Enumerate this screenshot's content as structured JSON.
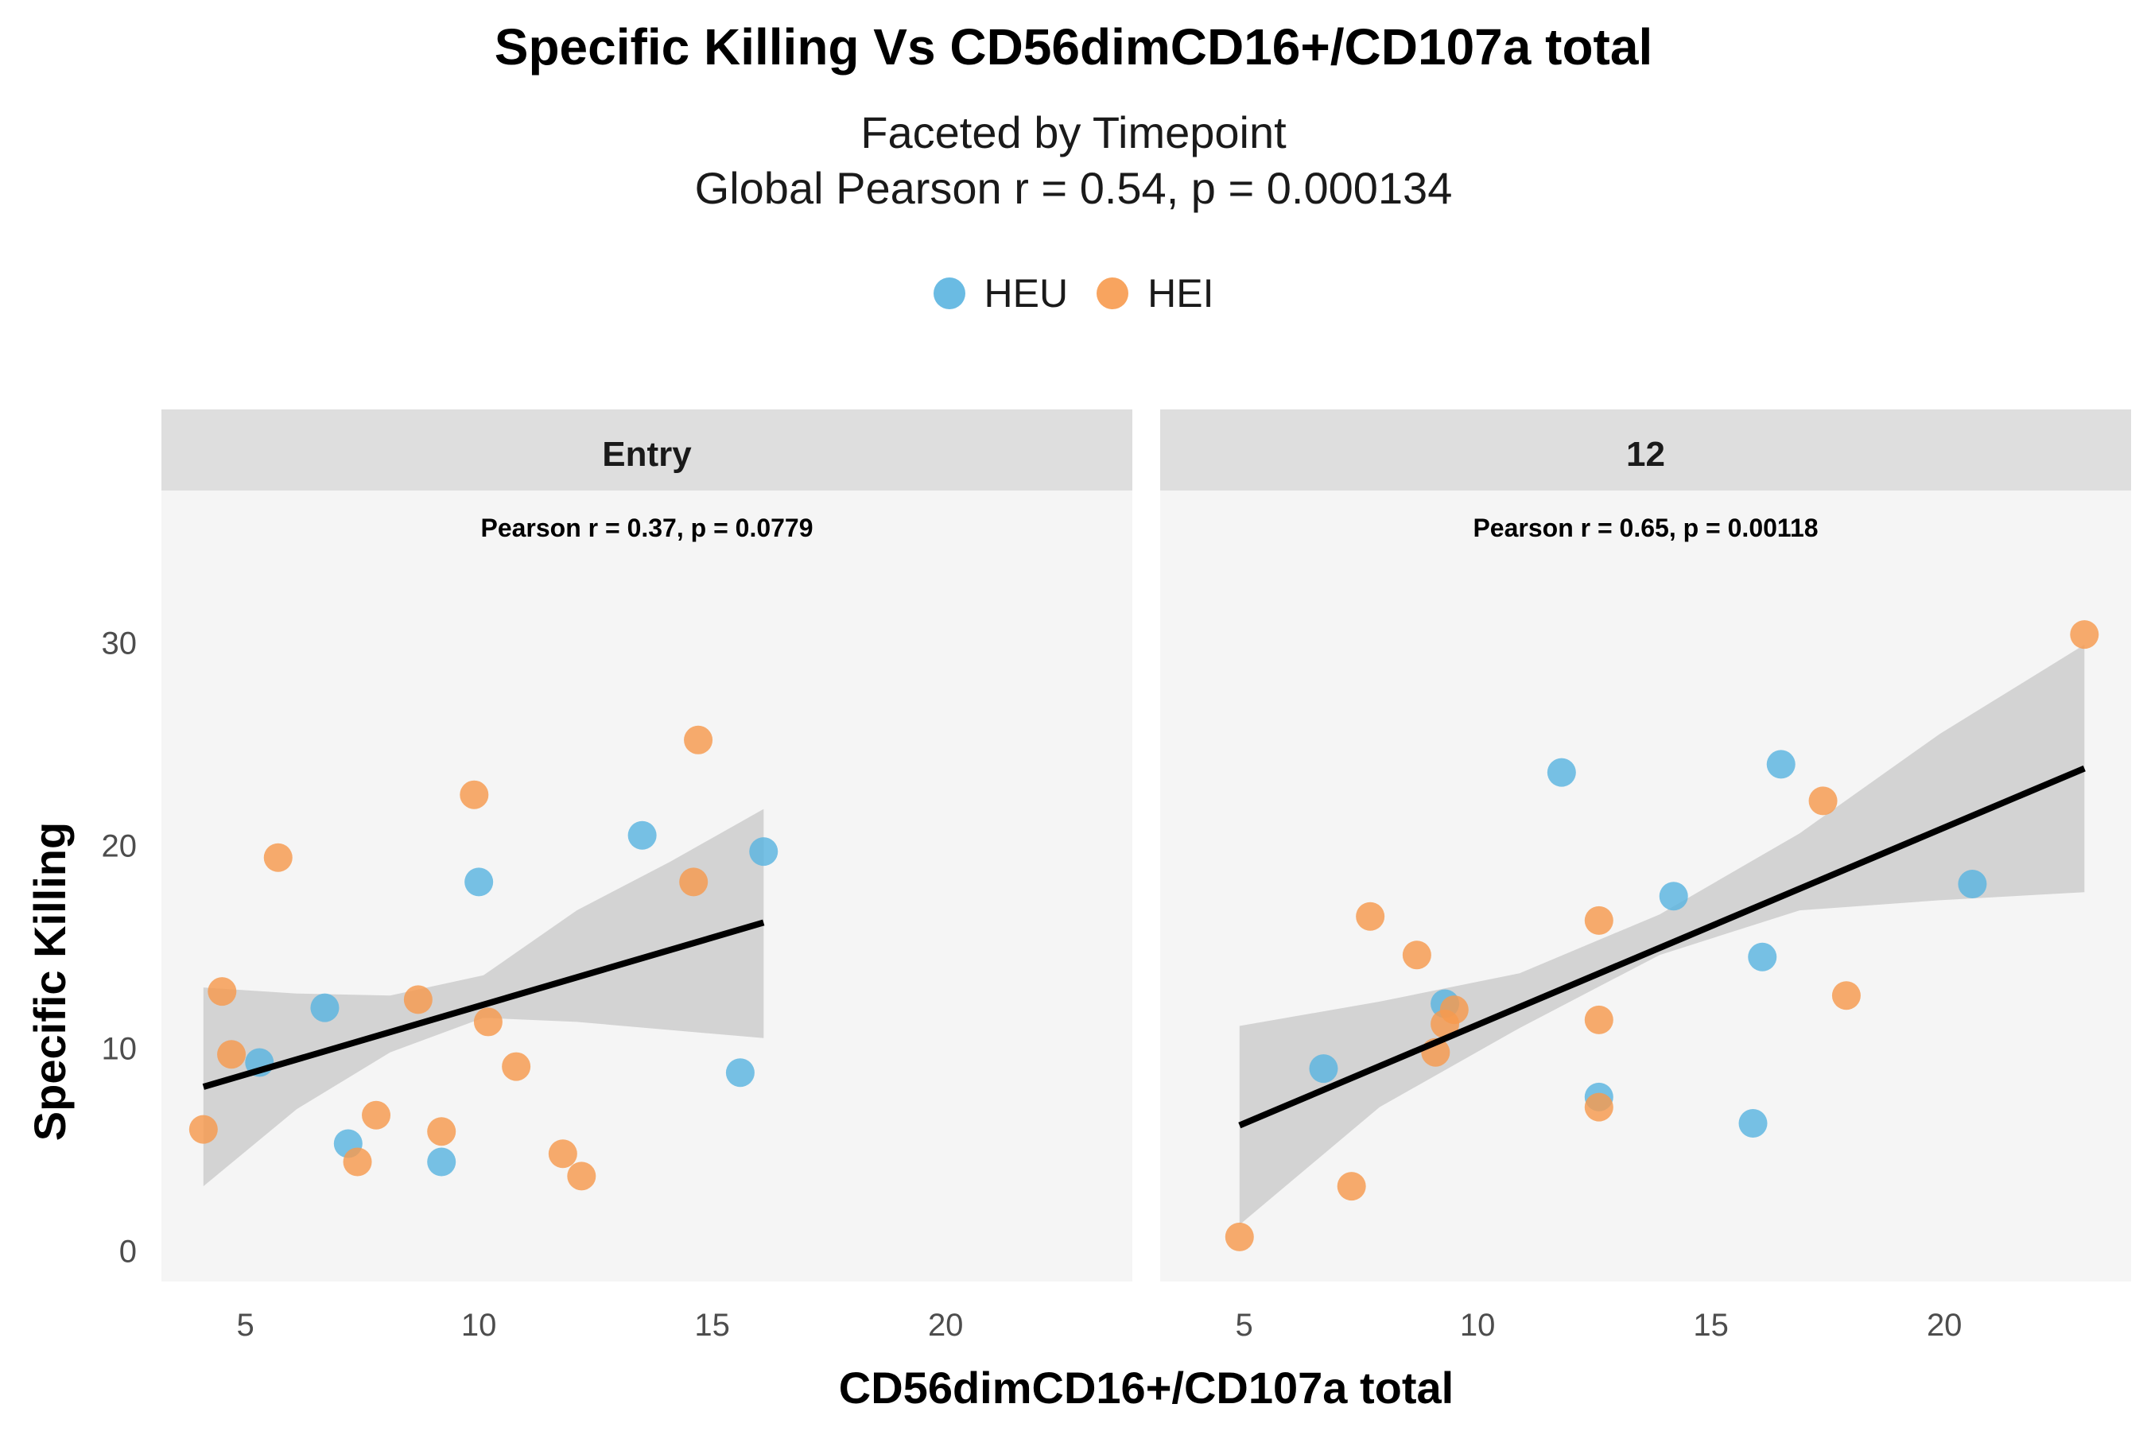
{
  "chart_data": {
    "type": "scatter",
    "title": "Specific Killing Vs CD56dimCD16+/CD107a total",
    "subtitle_lines": [
      "Faceted by Timepoint",
      "Global Pearson r = 0.54, p = 0.000134"
    ],
    "xlabel": "CD56dimCD16+/CD107a total",
    "ylabel": "Specific Killing",
    "xlim": [
      3.2,
      24.0
    ],
    "ylim": [
      -1.5,
      37.5
    ],
    "x_ticks": [
      5,
      10,
      15,
      20
    ],
    "y_ticks": [
      0,
      10,
      20,
      30
    ],
    "grid": false,
    "legend_position": "top",
    "groups": [
      {
        "name": "HEU",
        "color": "#5ab4e0"
      },
      {
        "name": "HEI",
        "color": "#f79a4e"
      }
    ],
    "facets": [
      {
        "label": "Entry",
        "annotation": "Pearson r = 0.37, p = 0.0779",
        "fit": {
          "x0": 4.1,
          "y0": 8.1,
          "x1": 16.1,
          "y1": 16.2
        },
        "band": {
          "x": [
            4.1,
            6.1,
            8.1,
            10.1,
            12.1,
            14.1,
            16.1
          ],
          "lower": [
            3.2,
            7.0,
            9.8,
            11.5,
            11.3,
            10.9,
            10.5
          ],
          "upper": [
            13.0,
            12.7,
            12.6,
            13.6,
            16.8,
            19.2,
            21.8
          ]
        },
        "points": {
          "HEU": [
            [
              5.3,
              9.3
            ],
            [
              6.7,
              12.0
            ],
            [
              7.2,
              5.3
            ],
            [
              9.2,
              4.4
            ],
            [
              10.0,
              18.2
            ],
            [
              13.5,
              20.5
            ],
            [
              15.6,
              8.8
            ],
            [
              16.1,
              19.7
            ]
          ],
          "HEI": [
            [
              4.1,
              6.0
            ],
            [
              4.5,
              12.8
            ],
            [
              4.7,
              9.7
            ],
            [
              5.7,
              19.4
            ],
            [
              7.4,
              4.4
            ],
            [
              7.8,
              6.7
            ],
            [
              8.7,
              12.4
            ],
            [
              9.2,
              5.9
            ],
            [
              9.9,
              22.5
            ],
            [
              10.2,
              11.3
            ],
            [
              10.8,
              9.1
            ],
            [
              11.8,
              4.8
            ],
            [
              12.2,
              3.7
            ],
            [
              14.6,
              18.2
            ],
            [
              14.7,
              25.2
            ]
          ]
        }
      },
      {
        "label": "12",
        "annotation": "Pearson r = 0.65, p = 0.00118",
        "fit": {
          "x0": 4.9,
          "y0": 6.2,
          "x1": 23.0,
          "y1": 23.8
        },
        "band": {
          "x": [
            4.9,
            7.9,
            10.9,
            13.9,
            16.9,
            19.9,
            23.0
          ],
          "lower": [
            1.3,
            7.1,
            11.0,
            14.6,
            16.8,
            17.3,
            17.7
          ],
          "upper": [
            11.1,
            12.3,
            13.7,
            16.6,
            20.6,
            25.5,
            29.9
          ]
        },
        "points": {
          "HEU": [
            [
              6.7,
              9.0
            ],
            [
              9.3,
              12.2
            ],
            [
              11.8,
              23.6
            ],
            [
              12.6,
              7.6
            ],
            [
              14.2,
              17.5
            ],
            [
              15.9,
              6.3
            ],
            [
              16.1,
              14.5
            ],
            [
              16.5,
              24.0
            ],
            [
              20.6,
              18.1
            ]
          ],
          "HEI": [
            [
              4.9,
              0.7
            ],
            [
              7.3,
              3.2
            ],
            [
              7.7,
              16.5
            ],
            [
              8.7,
              14.6
            ],
            [
              9.1,
              9.8
            ],
            [
              9.3,
              11.2
            ],
            [
              9.5,
              11.9
            ],
            [
              12.6,
              16.3
            ],
            [
              12.6,
              11.4
            ],
            [
              12.6,
              7.1
            ],
            [
              17.4,
              22.2
            ],
            [
              17.9,
              12.6
            ],
            [
              23.0,
              30.4
            ]
          ]
        }
      }
    ]
  }
}
